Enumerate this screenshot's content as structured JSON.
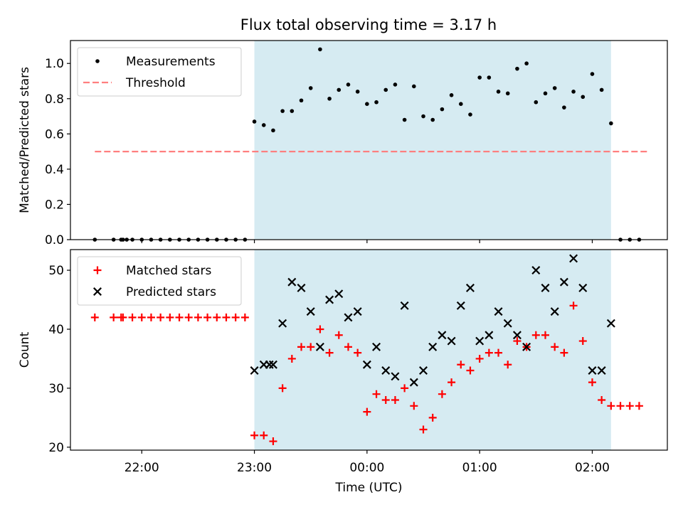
{
  "figure_title": "Flux total observing time = 3.17 h",
  "colors": {
    "shade": "#add8e6",
    "measurement": "#000000",
    "threshold": "#ff7f7f",
    "matched": "#ff0000",
    "predicted": "#000000"
  },
  "chart_data": [
    {
      "type": "scatter",
      "title": "Flux total observing time = 3.17 h",
      "xlabel": "",
      "ylabel": "Matched/Predicted stars",
      "xlim": [
        "21:22",
        "02:40"
      ],
      "ylim": [
        0,
        1.13
      ],
      "yticks": [
        "0.0",
        "0.2",
        "0.4",
        "0.6",
        "0.8",
        "1.0"
      ],
      "shaded_interval": [
        "23:00",
        "02:10"
      ],
      "legend_position": "top-left",
      "series": [
        {
          "name": "Measurements",
          "marker": "dot",
          "points": [
            [
              "21:35",
              0
            ],
            [
              "21:45",
              0
            ],
            [
              "21:49",
              0
            ],
            [
              "21:50",
              0
            ],
            [
              "21:52",
              0
            ],
            [
              "21:55",
              0
            ],
            [
              "22:00",
              0
            ],
            [
              "22:05",
              0
            ],
            [
              "22:10",
              0
            ],
            [
              "22:15",
              0
            ],
            [
              "22:20",
              0
            ],
            [
              "22:25",
              0
            ],
            [
              "22:30",
              0
            ],
            [
              "22:35",
              0
            ],
            [
              "22:40",
              0
            ],
            [
              "22:45",
              0
            ],
            [
              "22:50",
              0
            ],
            [
              "22:55",
              0
            ],
            [
              "23:00",
              0.67
            ],
            [
              "23:05",
              0.65
            ],
            [
              "23:10",
              0.62
            ],
            [
              "23:15",
              0.73
            ],
            [
              "23:20",
              0.73
            ],
            [
              "23:25",
              0.79
            ],
            [
              "23:30",
              0.86
            ],
            [
              "23:35",
              1.08
            ],
            [
              "23:40",
              0.8
            ],
            [
              "23:45",
              0.85
            ],
            [
              "23:50",
              0.88
            ],
            [
              "23:55",
              0.84
            ],
            [
              "00:00",
              0.77
            ],
            [
              "00:05",
              0.78
            ],
            [
              "00:10",
              0.85
            ],
            [
              "00:15",
              0.88
            ],
            [
              "00:20",
              0.68
            ],
            [
              "00:25",
              0.87
            ],
            [
              "00:30",
              0.7
            ],
            [
              "00:35",
              0.68
            ],
            [
              "00:40",
              0.74
            ],
            [
              "00:45",
              0.82
            ],
            [
              "00:50",
              0.77
            ],
            [
              "00:55",
              0.71
            ],
            [
              "01:00",
              0.92
            ],
            [
              "01:05",
              0.92
            ],
            [
              "01:10",
              0.84
            ],
            [
              "01:15",
              0.83
            ],
            [
              "01:20",
              0.97
            ],
            [
              "01:25",
              1.0
            ],
            [
              "01:30",
              0.78
            ],
            [
              "01:35",
              0.83
            ],
            [
              "01:40",
              0.86
            ],
            [
              "01:45",
              0.75
            ],
            [
              "01:50",
              0.84
            ],
            [
              "01:55",
              0.81
            ],
            [
              "02:00",
              0.94
            ],
            [
              "02:05",
              0.85
            ],
            [
              "02:10",
              0.66
            ],
            [
              "02:15",
              0
            ],
            [
              "02:20",
              0
            ],
            [
              "02:25",
              0
            ]
          ]
        },
        {
          "name": "Threshold",
          "marker": "dashed-line",
          "points": [
            [
              "21:35",
              0.5
            ],
            [
              "02:30",
              0.5
            ]
          ]
        }
      ]
    },
    {
      "type": "scatter",
      "title": "",
      "xlabel": "Time (UTC)",
      "ylabel": "Count",
      "xlim": [
        "21:22",
        "02:40"
      ],
      "ylim": [
        19.5,
        53.5
      ],
      "yticks": [
        "20",
        "30",
        "40",
        "50"
      ],
      "xticks": [
        "22:00",
        "23:00",
        "00:00",
        "01:00",
        "02:00"
      ],
      "shaded_interval": [
        "23:00",
        "02:10"
      ],
      "legend_position": "top-left",
      "series": [
        {
          "name": "Matched stars",
          "marker": "plus",
          "points": [
            [
              "21:35",
              42
            ],
            [
              "21:45",
              42
            ],
            [
              "21:49",
              42
            ],
            [
              "21:50",
              42
            ],
            [
              "21:55",
              42
            ],
            [
              "22:00",
              42
            ],
            [
              "22:05",
              42
            ],
            [
              "22:10",
              42
            ],
            [
              "22:15",
              42
            ],
            [
              "22:20",
              42
            ],
            [
              "22:25",
              42
            ],
            [
              "22:30",
              42
            ],
            [
              "22:35",
              42
            ],
            [
              "22:40",
              42
            ],
            [
              "22:45",
              42
            ],
            [
              "22:50",
              42
            ],
            [
              "22:55",
              42
            ],
            [
              "23:00",
              22
            ],
            [
              "23:05",
              22
            ],
            [
              "23:10",
              21
            ],
            [
              "23:15",
              30
            ],
            [
              "23:20",
              35
            ],
            [
              "23:25",
              37
            ],
            [
              "23:30",
              37
            ],
            [
              "23:35",
              40
            ],
            [
              "23:40",
              36
            ],
            [
              "23:45",
              39
            ],
            [
              "23:50",
              37
            ],
            [
              "23:55",
              36
            ],
            [
              "00:00",
              26
            ],
            [
              "00:05",
              29
            ],
            [
              "00:10",
              28
            ],
            [
              "00:15",
              28
            ],
            [
              "00:20",
              30
            ],
            [
              "00:25",
              27
            ],
            [
              "00:30",
              23
            ],
            [
              "00:35",
              25
            ],
            [
              "00:40",
              29
            ],
            [
              "00:45",
              31
            ],
            [
              "00:50",
              34
            ],
            [
              "00:55",
              33
            ],
            [
              "01:00",
              35
            ],
            [
              "01:05",
              36
            ],
            [
              "01:10",
              36
            ],
            [
              "01:15",
              34
            ],
            [
              "01:20",
              38
            ],
            [
              "01:25",
              37
            ],
            [
              "01:30",
              39
            ],
            [
              "01:35",
              39
            ],
            [
              "01:40",
              37
            ],
            [
              "01:45",
              36
            ],
            [
              "01:50",
              44
            ],
            [
              "01:55",
              38
            ],
            [
              "02:00",
              31
            ],
            [
              "02:05",
              28
            ],
            [
              "02:10",
              27
            ],
            [
              "02:15",
              27
            ],
            [
              "02:20",
              27
            ],
            [
              "02:25",
              27
            ]
          ]
        },
        {
          "name": "Predicted stars",
          "marker": "x",
          "points": [
            [
              "23:00",
              33
            ],
            [
              "23:05",
              34
            ],
            [
              "23:08",
              34
            ],
            [
              "23:10",
              34
            ],
            [
              "23:15",
              41
            ],
            [
              "23:20",
              48
            ],
            [
              "23:25",
              47
            ],
            [
              "23:30",
              43
            ],
            [
              "23:35",
              37
            ],
            [
              "23:40",
              45
            ],
            [
              "23:45",
              46
            ],
            [
              "23:50",
              42
            ],
            [
              "23:55",
              43
            ],
            [
              "00:00",
              34
            ],
            [
              "00:05",
              37
            ],
            [
              "00:10",
              33
            ],
            [
              "00:15",
              32
            ],
            [
              "00:20",
              44
            ],
            [
              "00:25",
              31
            ],
            [
              "00:30",
              33
            ],
            [
              "00:35",
              37
            ],
            [
              "00:40",
              39
            ],
            [
              "00:45",
              38
            ],
            [
              "00:50",
              44
            ],
            [
              "00:55",
              47
            ],
            [
              "01:00",
              38
            ],
            [
              "01:05",
              39
            ],
            [
              "01:10",
              43
            ],
            [
              "01:15",
              41
            ],
            [
              "01:20",
              39
            ],
            [
              "01:25",
              37
            ],
            [
              "01:30",
              50
            ],
            [
              "01:35",
              47
            ],
            [
              "01:40",
              43
            ],
            [
              "01:45",
              48
            ],
            [
              "01:50",
              52
            ],
            [
              "01:55",
              47
            ],
            [
              "02:00",
              33
            ],
            [
              "02:05",
              33
            ],
            [
              "02:10",
              41
            ]
          ]
        }
      ]
    }
  ]
}
